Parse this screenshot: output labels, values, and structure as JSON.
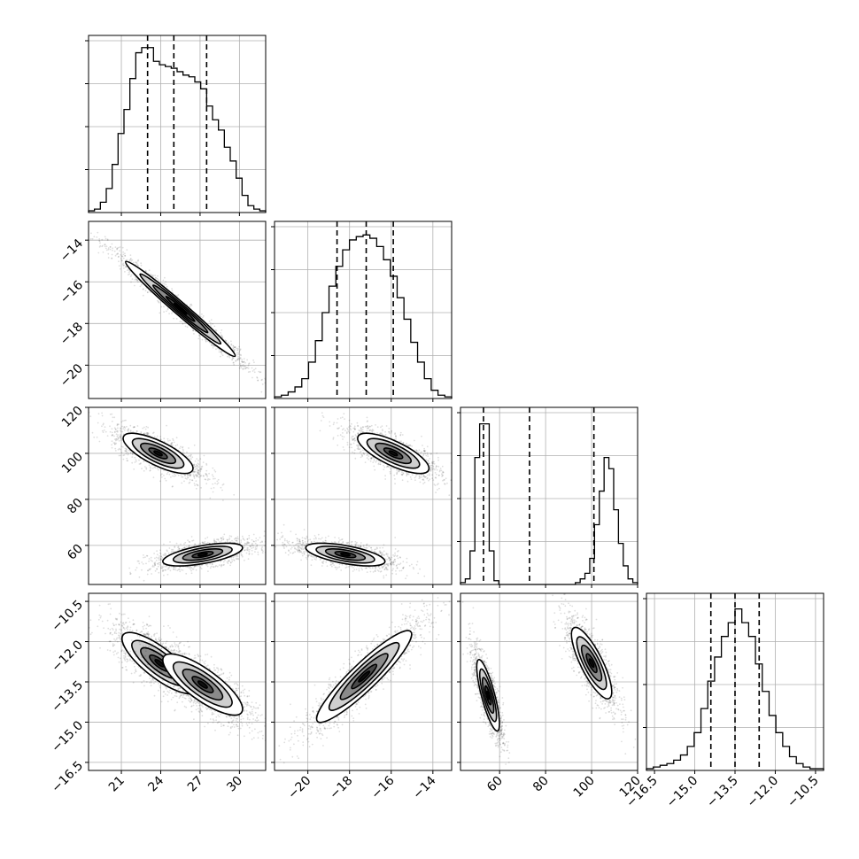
{
  "chart_data": {
    "type": "corner",
    "grid": true,
    "colors": {
      "line": "#000000",
      "grid": "#b0b0b0",
      "scatter": "#000000",
      "fill": "#ffffff"
    },
    "params": [
      {
        "range": [
          18.5,
          32.0
        ],
        "ticks": [
          21,
          24,
          27,
          30
        ],
        "tick_labels": [
          "21",
          "24",
          "27",
          "30"
        ],
        "quantiles": [
          23.0,
          25.0,
          27.5
        ]
      },
      {
        "range": [
          -21.6,
          -13.1
        ],
        "ticks": [
          -20,
          -18,
          -16,
          -14
        ],
        "tick_labels": [
          "−20",
          "−18",
          "−16",
          "−14"
        ],
        "quantiles": [
          -18.6,
          -17.2,
          -15.9
        ]
      },
      {
        "range": [
          43,
          120
        ],
        "ticks": [
          60,
          80,
          100,
          120
        ],
        "tick_labels": [
          "60",
          "80",
          "100",
          "120"
        ],
        "quantiles": [
          53,
          73,
          101
        ]
      },
      {
        "range": [
          -16.8,
          -10.2
        ],
        "ticks": [
          -16.5,
          -15.0,
          -13.5,
          -12.0,
          -10.5
        ],
        "tick_labels": [
          "−16.5",
          "−15.0",
          "−13.5",
          "−12.0",
          "−10.5"
        ],
        "quantiles": [
          -14.4,
          -13.5,
          -12.6
        ]
      }
    ],
    "histograms": [
      {
        "param": 0,
        "edges_range": [
          18.5,
          32.0
        ],
        "counts": [
          1,
          2,
          6,
          14,
          28,
          46,
          60,
          78,
          93,
          96,
          96,
          88,
          86,
          85,
          84,
          82,
          80,
          79,
          76,
          72,
          62,
          54,
          48,
          38,
          30,
          20,
          10,
          4,
          2,
          1
        ],
        "ymax": 100
      },
      {
        "param": 1,
        "edges_range": [
          -21.6,
          -13.1
        ],
        "counts": [
          1,
          2,
          4,
          7,
          12,
          22,
          35,
          52,
          68,
          80,
          90,
          96,
          98,
          99,
          97,
          92,
          84,
          74,
          61,
          48,
          34,
          22,
          12,
          5,
          2,
          1
        ],
        "ymax": 104
      },
      {
        "param": 2,
        "edges_range": [
          43,
          120
        ],
        "counts": [
          1,
          3,
          18,
          68,
          86,
          86,
          18,
          2,
          0,
          0,
          0,
          0,
          0,
          0,
          0,
          0,
          0,
          0,
          0,
          0,
          0,
          0,
          0,
          0,
          1,
          3,
          6,
          14,
          32,
          50,
          68,
          62,
          40,
          22,
          10,
          3,
          1
        ],
        "ymax": 92
      },
      {
        "param": 3,
        "edges_range": [
          -16.8,
          -10.2
        ],
        "counts": [
          1,
          2,
          3,
          4,
          6,
          9,
          14,
          22,
          36,
          52,
          66,
          78,
          86,
          94,
          86,
          78,
          62,
          46,
          32,
          22,
          14,
          8,
          4,
          2,
          1,
          1
        ],
        "ymax": 100
      }
    ],
    "pairs": [
      {
        "x": 0,
        "y": 1,
        "modes": [
          {
            "mean": [
              25.5,
              -17.3
            ],
            "sx": 2.2,
            "sy": 1.2,
            "rho": -0.985
          }
        ]
      },
      {
        "x": 0,
        "y": 2,
        "modes": [
          {
            "mean": [
              23.8,
              100.0
            ],
            "sx": 1.4,
            "sy": 4.6,
            "rho": -0.75
          },
          {
            "mean": [
              27.2,
              56.0
            ],
            "sx": 1.6,
            "sy": 2.6,
            "rho": 0.6
          }
        ]
      },
      {
        "x": 1,
        "y": 2,
        "modes": [
          {
            "mean": [
              -15.9,
              100.0
            ],
            "sx": 0.9,
            "sy": 4.6,
            "rho": -0.75
          },
          {
            "mean": [
              -18.2,
              56.0
            ],
            "sx": 1.0,
            "sy": 2.6,
            "rho": -0.6
          }
        ]
      },
      {
        "x": 0,
        "y": 3,
        "modes": [
          {
            "mean": [
              23.9,
              -12.8
            ],
            "sx": 1.5,
            "sy": 0.6,
            "rho": -0.8
          },
          {
            "mean": [
              27.2,
              -13.6
            ],
            "sx": 1.6,
            "sy": 0.6,
            "rho": -0.8
          }
        ]
      },
      {
        "x": 1,
        "y": 3,
        "modes": [
          {
            "mean": [
              -17.3,
              -13.3
            ],
            "sx": 1.2,
            "sy": 0.9,
            "rho": 0.92
          }
        ]
      },
      {
        "x": 2,
        "y": 3,
        "modes": [
          {
            "mean": [
              55.0,
              -14.0
            ],
            "sx": 2.6,
            "sy": 0.7,
            "rho": -0.8
          },
          {
            "mean": [
              100.0,
              -12.8
            ],
            "sx": 4.6,
            "sy": 0.7,
            "rho": -0.8
          }
        ]
      }
    ]
  }
}
